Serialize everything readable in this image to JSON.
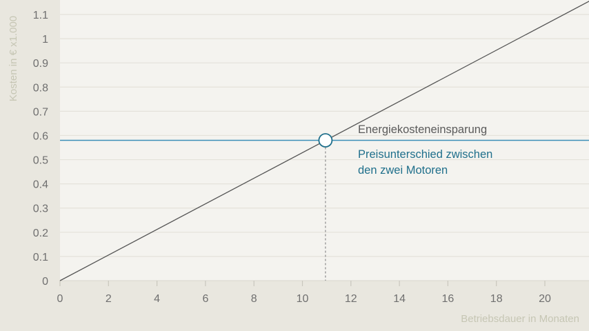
{
  "chart_data": {
    "type": "line",
    "xlabel": "Betriebsdauer in Monaten",
    "ylabel": "Kosten in € x1.000",
    "xlim": [
      0,
      22
    ],
    "ylim": [
      0,
      1.15
    ],
    "x_ticks": [
      "0",
      "2",
      "4",
      "6",
      "8",
      "10",
      "12",
      "14",
      "16",
      "18",
      "20"
    ],
    "x_tick_values": [
      0,
      2,
      4,
      6,
      8,
      10,
      12,
      14,
      16,
      18,
      20
    ],
    "y_ticks": [
      "0",
      "0.1",
      "0.2",
      "0.3",
      "0.4",
      "0.5",
      "0.6",
      "0.7",
      "0.8",
      "0.9",
      "1",
      "1.1"
    ],
    "y_tick_values": [
      0,
      0.1,
      0.2,
      0.3,
      0.4,
      0.5,
      0.6,
      0.7,
      0.8,
      0.9,
      1.0,
      1.1
    ],
    "grid": true,
    "series": [
      {
        "name": "Energiekosteneinsparung",
        "kind": "line",
        "color": "#555555",
        "x": [
          0,
          22
        ],
        "y": [
          0,
          1.164
        ]
      },
      {
        "name": "Preisunterschied zwischen den zwei Motoren",
        "kind": "hline",
        "color": "#3a8fb7",
        "y": 0.58
      }
    ],
    "intersection": {
      "x": 10.95,
      "y": 0.58
    },
    "annotations": {
      "line_label": "Energiekosteneinsparung",
      "line_label_color": "#5a5a5a",
      "hline_label_1": "Preisunterschied zwischen",
      "hline_label_2": "den zwei Motoren",
      "hline_label_color": "#1f6f8b"
    },
    "colors": {
      "plot_background": "#f4f3ef",
      "outer_background": "#e9e7df",
      "gridline": "#e4e2da"
    }
  }
}
